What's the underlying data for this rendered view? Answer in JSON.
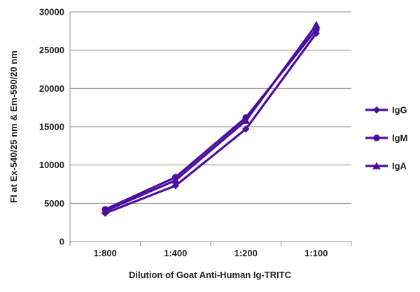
{
  "chart_data": {
    "type": "line",
    "categories": [
      "1:800",
      "1:400",
      "1:200",
      "1:100"
    ],
    "series": [
      {
        "name": "IgG",
        "values": [
          3700,
          7300,
          14700,
          27200
        ],
        "marker": "diamond"
      },
      {
        "name": "IgM",
        "values": [
          4200,
          8400,
          16200,
          27700
        ],
        "marker": "circle"
      },
      {
        "name": "IgA",
        "values": [
          4000,
          8000,
          15800,
          28300
        ],
        "marker": "triangle"
      }
    ],
    "xlabel": "Dilution of Goat Anti-Human Ig-TRITC",
    "ylabel": "FI at Ex-540/25 nm & Em-590/20 nm",
    "ylim": [
      0,
      30000
    ],
    "yticks": [
      0,
      5000,
      10000,
      15000,
      20000,
      25000,
      30000
    ],
    "grid": "horizontal",
    "legend_position": "right",
    "colors": {
      "series": "#4b0fa0",
      "grid": "#8c8c8c",
      "axis": "#8c8c8c"
    }
  }
}
